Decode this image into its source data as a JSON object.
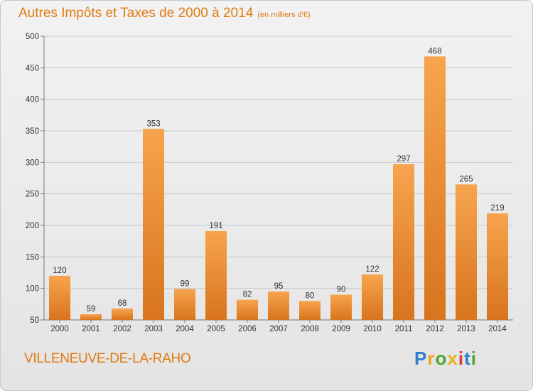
{
  "header": {
    "title": "Autres Impôts et Taxes de 2000 à 2014",
    "unit": "(en milliers d'€)"
  },
  "footer": {
    "commune": "VILLENEUVE-DE-LA-RAHO",
    "logo_letters": [
      "P",
      "r",
      "o",
      "x",
      "i",
      "t",
      "i"
    ],
    "logo_colors": [
      "#2f7fcf",
      "#f2a51a",
      "#4aa82e",
      "#e8b21a",
      "#d9402a",
      "#2f7fcf",
      "#4aa82e"
    ]
  },
  "colors": {
    "bar_light": "#f7a44e",
    "bar_dark": "#d8741d",
    "accent": "#e07a10",
    "grid": "#c8c8c8"
  },
  "chart_data": {
    "type": "bar",
    "title": "Autres Impôts et Taxes de 2000 à 2014",
    "subtitle": "(en milliers d'€)",
    "categories": [
      "2000",
      "2001",
      "2002",
      "2003",
      "2004",
      "2005",
      "2006",
      "2007",
      "2008",
      "2009",
      "2010",
      "2011",
      "2012",
      "2013",
      "2014"
    ],
    "values": [
      120,
      59,
      68,
      353,
      99,
      191,
      82,
      95,
      80,
      90,
      122,
      297,
      468,
      265,
      219
    ],
    "ylim": [
      50,
      500
    ],
    "yticks": [
      50,
      100,
      150,
      200,
      250,
      300,
      350,
      400,
      450,
      500
    ],
    "grid": true,
    "xlabel": "",
    "ylabel": ""
  }
}
